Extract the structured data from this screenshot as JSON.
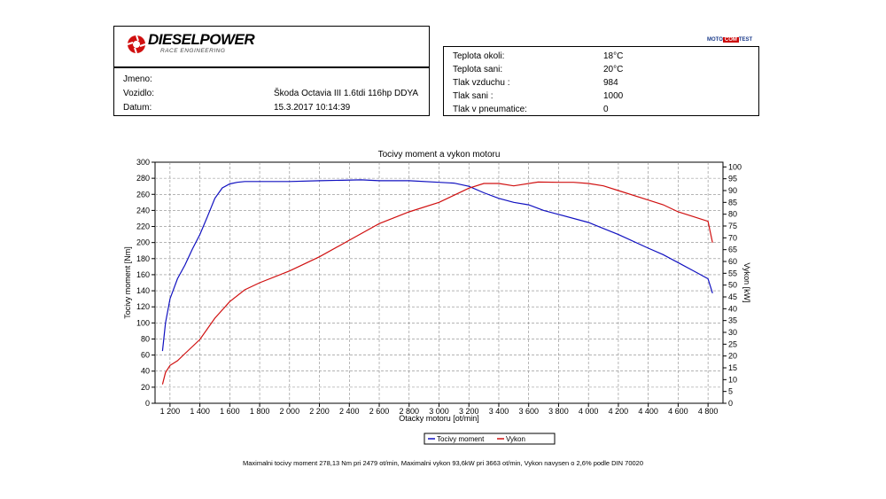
{
  "header": {
    "logo_text": "DIESELPOWER",
    "logo_sub": "RACE ENGINEERING",
    "badge_left": "MOTO",
    "badge_mid": "COM",
    "badge_right": "TEST"
  },
  "vehicle": [
    {
      "label": "Jmeno:",
      "value": ""
    },
    {
      "label": "Vozidlo:",
      "value": "Škoda Octavia III 1.6tdi 116hp DDYA"
    },
    {
      "label": "Datum:",
      "value": "15.3.2017 10:14:39"
    }
  ],
  "conditions": [
    {
      "label": "Teplota okoli:",
      "value": "18°C"
    },
    {
      "label": "Teplota sani:",
      "value": "20°C"
    },
    {
      "label": "Tlak vzduchu :",
      "value": "984"
    },
    {
      "label": "Tlak sani :",
      "value": "1000"
    },
    {
      "label": "Tlak v pneumatice:",
      "value": "0"
    }
  ],
  "footer": "Maximalni tocivy moment 278,13 Nm pri 2479 ot/min,  Maximalni vykon 93,6kW pri 3663 ot/min,  Vykon navysen o 2,6% podle DIN 70020",
  "chart_data": {
    "type": "line",
    "title": "Tocivy moment a vykon motoru",
    "xlabel": "Otacky motoru [ot/min]",
    "ylabel": "Tocivy moment [Nm]",
    "y2label": "Vykon [kW]",
    "xlim": [
      1100,
      4900
    ],
    "ylim": [
      0,
      300
    ],
    "y2lim": [
      0,
      102
    ],
    "x_ticks": [
      1200,
      1400,
      1600,
      1800,
      2000,
      2200,
      2400,
      2600,
      2800,
      3000,
      3200,
      3400,
      3600,
      3800,
      4000,
      4200,
      4400,
      4600,
      4800
    ],
    "x_tick_labels": [
      "1 200",
      "1 400",
      "1 600",
      "1 800",
      "2 000",
      "2 200",
      "2 400",
      "2 600",
      "2 800",
      "3 000",
      "3 200",
      "3 400",
      "3 600",
      "3 800",
      "4 000",
      "4 200",
      "4 400",
      "4 600",
      "4 800"
    ],
    "y_ticks": [
      0,
      20,
      40,
      60,
      80,
      100,
      120,
      140,
      160,
      180,
      200,
      220,
      240,
      260,
      280,
      300
    ],
    "y2_ticks": [
      0,
      5,
      10,
      15,
      20,
      25,
      30,
      35,
      40,
      45,
      50,
      55,
      60,
      65,
      70,
      75,
      80,
      85,
      90,
      95,
      100
    ],
    "grid": true,
    "legend": "bottom-center",
    "series": [
      {
        "name": "Tocivy moment",
        "axis": "left",
        "color": "#1010c0",
        "x": [
          1150,
          1170,
          1200,
          1250,
          1300,
          1350,
          1400,
          1450,
          1500,
          1550,
          1600,
          1650,
          1700,
          1800,
          2000,
          2200,
          2479,
          2600,
          2800,
          3000,
          3100,
          3200,
          3300,
          3400,
          3500,
          3600,
          3700,
          3800,
          4000,
          4200,
          4400,
          4500,
          4600,
          4700,
          4800,
          4830
        ],
        "y": [
          65,
          100,
          130,
          155,
          172,
          192,
          210,
          232,
          255,
          268,
          273,
          275,
          276,
          276,
          276,
          277,
          278,
          277,
          277,
          275,
          274,
          270,
          262,
          255,
          250,
          247,
          240,
          235,
          225,
          210,
          193,
          185,
          175,
          165,
          155,
          137
        ]
      },
      {
        "name": "Vykon",
        "axis": "right",
        "color": "#d01010",
        "x": [
          1150,
          1170,
          1200,
          1250,
          1300,
          1400,
          1500,
          1600,
          1700,
          1800,
          2000,
          2200,
          2400,
          2600,
          2800,
          3000,
          3100,
          3200,
          3300,
          3400,
          3500,
          3663,
          3800,
          3900,
          4000,
          4100,
          4200,
          4400,
          4500,
          4600,
          4700,
          4800,
          4830
        ],
        "y": [
          8,
          13,
          16,
          18,
          21,
          27,
          36,
          43,
          48,
          51,
          56,
          62,
          69,
          76,
          81,
          85,
          88,
          91,
          93,
          93,
          92,
          93.6,
          93.5,
          93.5,
          93,
          92,
          90,
          86,
          84,
          81,
          79,
          77,
          68
        ]
      }
    ]
  }
}
